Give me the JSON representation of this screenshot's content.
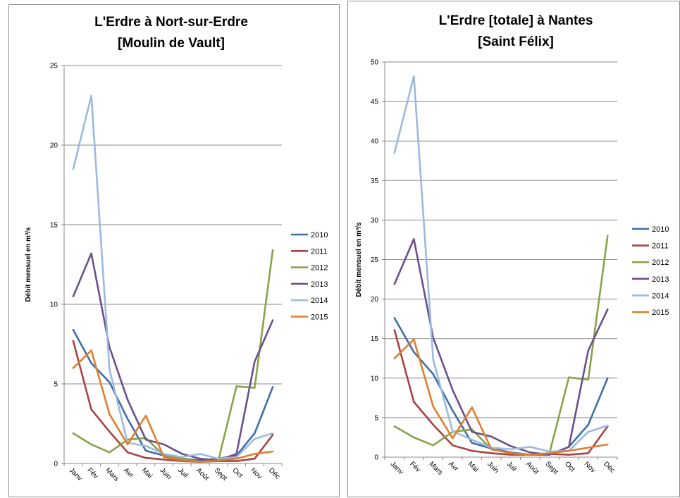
{
  "chart_data": [
    {
      "type": "line",
      "title": [
        "L'Erdre à Nort-sur-Erdre",
        "[Moulin de Vault]"
      ],
      "ylabel": "Débit mensuel en m³/s",
      "xlabel": "",
      "categories": [
        "Janv",
        "Fév",
        "Mars",
        "Avr",
        "Mai",
        "Juin",
        "Juil",
        "Août",
        "Sept",
        "Oct",
        "Nov",
        "Déc"
      ],
      "ylim": [
        0,
        25
      ],
      "yticks": [
        0,
        5,
        10,
        15,
        20,
        25
      ],
      "grid": true,
      "legend_position": "right",
      "series": [
        {
          "name": "2010",
          "color": "#3f6ea7",
          "values": [
            8.4,
            6.3,
            5.1,
            2.8,
            0.8,
            0.5,
            0.3,
            0.2,
            0.3,
            0.5,
            1.9,
            4.8
          ]
        },
        {
          "name": "2011",
          "color": "#a84341",
          "values": [
            7.7,
            3.4,
            2.0,
            0.7,
            0.35,
            0.25,
            0.15,
            0.1,
            0.15,
            0.15,
            0.3,
            1.8
          ]
        },
        {
          "name": "2012",
          "color": "#87a34a",
          "values": [
            1.9,
            1.2,
            0.7,
            1.5,
            1.6,
            0.5,
            0.3,
            0.1,
            0.2,
            4.85,
            4.75,
            13.4
          ]
        },
        {
          "name": "2013",
          "color": "#6b4f8e",
          "values": [
            10.5,
            13.2,
            7.3,
            4.0,
            1.5,
            1.2,
            0.6,
            0.3,
            0.2,
            0.6,
            6.4,
            9.0
          ]
        },
        {
          "name": "2014",
          "color": "#9cb9e0",
          "values": [
            18.5,
            23.1,
            5.9,
            1.3,
            1.1,
            0.6,
            0.4,
            0.6,
            0.3,
            0.4,
            1.55,
            1.9
          ]
        },
        {
          "name": "2015",
          "color": "#e07d2c",
          "values": [
            6.0,
            7.1,
            3.1,
            1.2,
            3.0,
            0.4,
            0.2,
            0.1,
            0.2,
            0.3,
            0.6,
            0.75
          ]
        }
      ]
    },
    {
      "type": "line",
      "title": [
        "L'Erdre [totale] à Nantes",
        "[Saint Félix]"
      ],
      "ylabel": "Débit mensuel en m³/s",
      "xlabel": "",
      "categories": [
        "Janv",
        "Fév",
        "Mars",
        "Avr",
        "Mai",
        "Juin",
        "Juil",
        "Août",
        "Sept",
        "Oct",
        "Nov",
        "Déc"
      ],
      "ylim": [
        0,
        50
      ],
      "yticks": [
        0,
        5,
        10,
        15,
        20,
        25,
        30,
        35,
        40,
        45,
        50
      ],
      "grid": true,
      "legend_position": "right",
      "series": [
        {
          "name": "2010",
          "color": "#3f6ea7",
          "values": [
            17.6,
            13.3,
            10.5,
            5.9,
            1.8,
            1.1,
            0.6,
            0.3,
            0.3,
            1.3,
            4.1,
            10.0
          ]
        },
        {
          "name": "2011",
          "color": "#a84341",
          "values": [
            16.1,
            7.0,
            4.1,
            1.5,
            0.8,
            0.5,
            0.3,
            0.3,
            0.4,
            0.3,
            0.5,
            3.9
          ]
        },
        {
          "name": "2012",
          "color": "#87a34a",
          "values": [
            3.9,
            2.5,
            1.5,
            3.2,
            3.5,
            1.0,
            0.5,
            0.3,
            0.5,
            10.1,
            9.8,
            28.0
          ]
        },
        {
          "name": "2013",
          "color": "#6b4f8e",
          "values": [
            21.9,
            27.6,
            15.1,
            8.5,
            3.2,
            2.6,
            1.4,
            0.6,
            0.3,
            1.3,
            13.5,
            18.7
          ]
        },
        {
          "name": "2014",
          "color": "#9cb9e0",
          "values": [
            38.5,
            48.2,
            12.3,
            3.3,
            2.2,
            1.2,
            1.0,
            1.3,
            0.7,
            0.8,
            3.2,
            4.0
          ]
        },
        {
          "name": "2015",
          "color": "#e07d2c",
          "values": [
            12.5,
            14.9,
            6.4,
            2.4,
            6.3,
            1.0,
            0.5,
            0.3,
            0.5,
            0.8,
            1.2,
            1.6
          ]
        }
      ]
    }
  ]
}
